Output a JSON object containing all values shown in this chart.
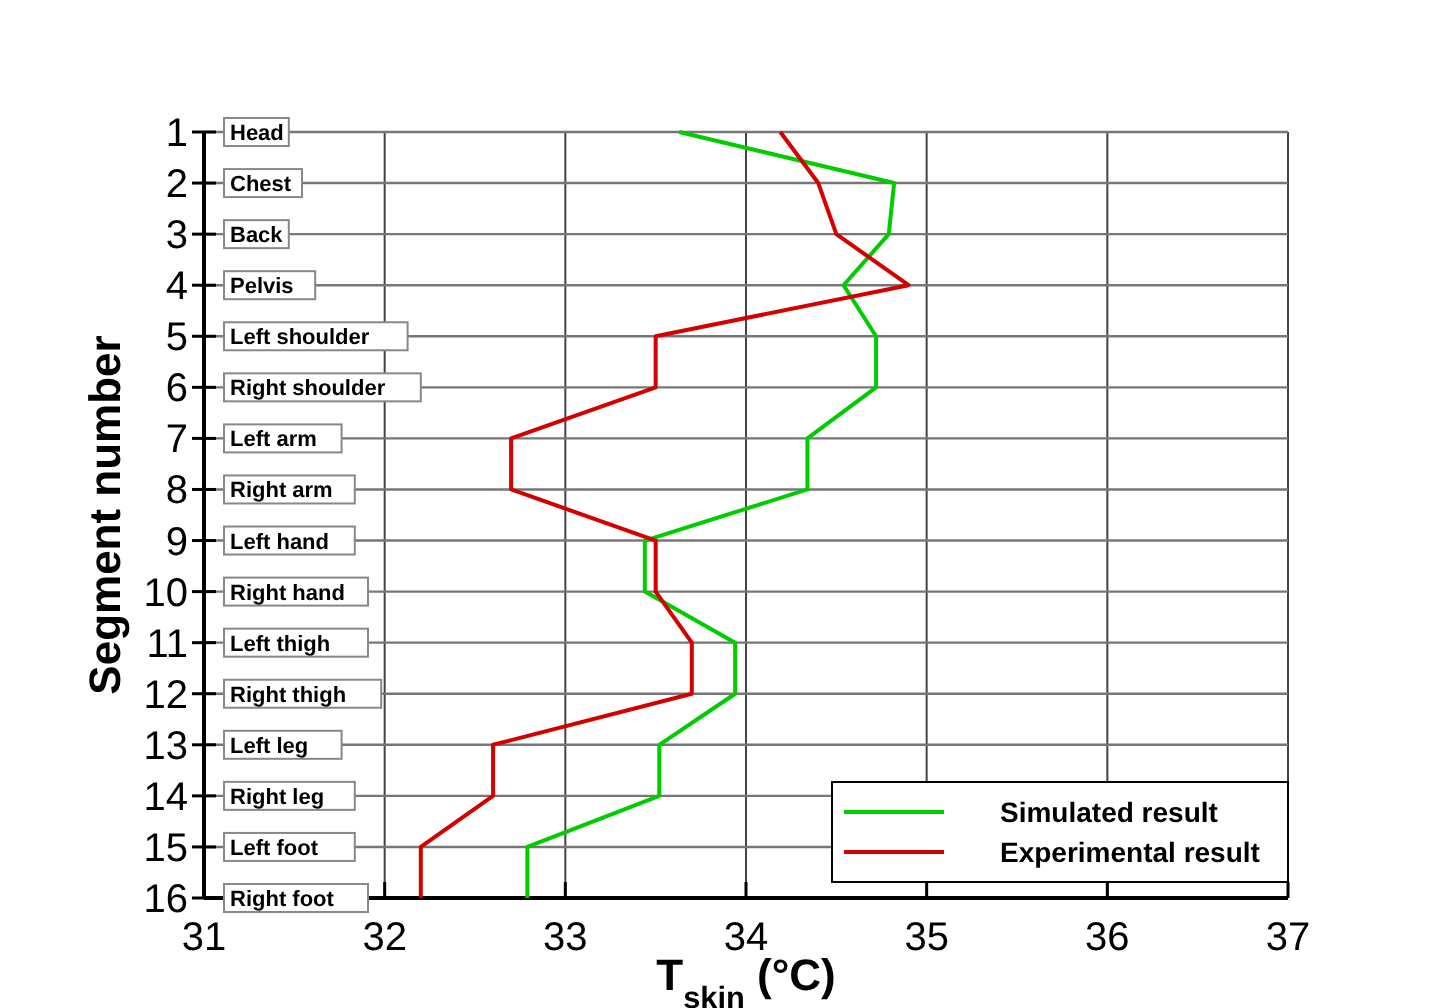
{
  "chart_data": {
    "type": "line",
    "orientation": "horizontal",
    "xlabel": "T$_{skin}$ (°C)",
    "ylabel": "Segment number",
    "categories": [
      "1",
      "2",
      "3",
      "4",
      "5",
      "6",
      "7",
      "8",
      "9",
      "10",
      "11",
      "12",
      "13",
      "14",
      "15",
      "16"
    ],
    "series": [
      {
        "name": "Simulated result",
        "color": "#00cc00",
        "values": [
          33.63,
          34.82,
          34.79,
          34.54,
          34.72,
          34.72,
          34.34,
          34.34,
          33.44,
          33.44,
          33.94,
          33.94,
          33.52,
          33.52,
          32.79,
          32.79
        ]
      },
      {
        "name": "Experimental result",
        "color": "#d40000",
        "values": [
          34.19,
          34.4,
          34.5,
          34.9,
          33.5,
          33.5,
          32.7,
          32.7,
          33.5,
          33.5,
          33.7,
          33.7,
          32.6,
          32.6,
          32.2,
          32.2
        ]
      }
    ],
    "xlim": [
      31,
      37
    ],
    "xticks": [
      31,
      32,
      33,
      34,
      35,
      36,
      37
    ],
    "grid": true,
    "legend": "bottom right",
    "marker": "none",
    "line_style": "solid",
    "annotations": [
      "Head",
      "Chest",
      "Back",
      "Pelvis",
      "Left shoulder",
      "Right shoulder",
      "Left arm",
      "Right arm",
      "Left hand",
      "Right hand",
      "Left thigh",
      "Right thigh",
      "Left leg",
      "Right leg",
      "Left foot",
      "Right foot"
    ]
  }
}
